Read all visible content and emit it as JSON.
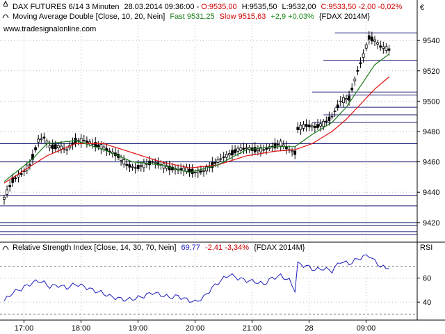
{
  "header": {
    "instrument": "DAX FUTURES 6/14 3 Minuten",
    "datetime": "28.03.2014 09:36:00",
    "ohlc_prefix": " - ",
    "open": "O:9535,00",
    "high": "H:9535,50",
    "low": "L:9532,00",
    "close_change": "C:9533,50 -2,00 -0,02%",
    "ma_label": "Moving Average Double [Close, 10, 20, Nein]",
    "ma_fast": "Fast 9531,25",
    "ma_slow": "Slow 9515,63",
    "ma_change": "+2,9 +0,03%",
    "ma_symbol": "{FDAX 2014M}",
    "website": "www.tradesignalonline.com",
    "currency": "€"
  },
  "rsi_header": {
    "label": "Relative Strength Index [Close, 14, 30, 70, Nein]",
    "value": "69,77",
    "change": "-2,41 -3,34%",
    "symbol": "{FDAX 2014M}",
    "axis_title": "RSI"
  },
  "colors": {
    "candle": "#000000",
    "ma_fast": "#1a7a1a",
    "ma_slow": "#e01010",
    "rsi_line": "#1f1fbf",
    "hline": "#1c1c7a",
    "grid": "#b8b8b8",
    "negative": "#cc0000",
    "positive": "#1a8a1a"
  },
  "chart_data": [
    {
      "type": "candlestick",
      "title": "DAX FUTURES 6/14 3 Minuten",
      "x_ticks": [
        "17:00",
        "18:00",
        "19:00",
        "20:00",
        "21:00",
        "28",
        "09:00"
      ],
      "x_tick_index": [
        5,
        25,
        45,
        65,
        85,
        105,
        125
      ],
      "n_bars": 136,
      "ylim": [
        9408,
        9552
      ],
      "y_ticks": [
        9420,
        9440,
        9460,
        9480,
        9500,
        9520,
        9540
      ],
      "y_tick_labels": [
        "9420",
        "9440",
        "9460",
        "9480",
        "9500",
        "9520",
        "9540"
      ],
      "grid": true,
      "price_anchors": [
        [
          0,
          9436
        ],
        [
          3,
          9448
        ],
        [
          6,
          9452
        ],
        [
          9,
          9458
        ],
        [
          12,
          9474
        ],
        [
          14,
          9476
        ],
        [
          16,
          9470
        ],
        [
          19,
          9470
        ],
        [
          22,
          9468
        ],
        [
          25,
          9474
        ],
        [
          28,
          9474
        ],
        [
          31,
          9472
        ],
        [
          34,
          9470
        ],
        [
          38,
          9466
        ],
        [
          40,
          9464
        ],
        [
          43,
          9458
        ],
        [
          46,
          9456
        ],
        [
          49,
          9458
        ],
        [
          52,
          9460
        ],
        [
          55,
          9458
        ],
        [
          58,
          9456
        ],
        [
          61,
          9455
        ],
        [
          64,
          9455
        ],
        [
          67,
          9453
        ],
        [
          70,
          9454
        ],
        [
          73,
          9458
        ],
        [
          76,
          9462
        ],
        [
          79,
          9465
        ],
        [
          82,
          9468
        ],
        [
          85,
          9469
        ],
        [
          88,
          9468
        ],
        [
          91,
          9468
        ],
        [
          94,
          9470
        ],
        [
          97,
          9472
        ],
        [
          100,
          9468
        ],
        [
          102,
          9466
        ],
        [
          103,
          9482
        ],
        [
          106,
          9484
        ],
        [
          109,
          9483
        ],
        [
          112,
          9485
        ],
        [
          115,
          9490
        ],
        [
          118,
          9500
        ],
        [
          121,
          9502
        ],
        [
          124,
          9520
        ],
        [
          126,
          9530
        ],
        [
          128,
          9542
        ],
        [
          130,
          9540
        ],
        [
          132,
          9536
        ],
        [
          135,
          9534
        ]
      ],
      "fast_ma": [
        [
          0,
          9447
        ],
        [
          10,
          9462
        ],
        [
          15,
          9472
        ],
        [
          25,
          9474
        ],
        [
          35,
          9468
        ],
        [
          45,
          9460
        ],
        [
          55,
          9458
        ],
        [
          65,
          9453
        ],
        [
          75,
          9458
        ],
        [
          85,
          9468
        ],
        [
          95,
          9470
        ],
        [
          102,
          9470
        ],
        [
          108,
          9478
        ],
        [
          115,
          9486
        ],
        [
          120,
          9496
        ],
        [
          125,
          9510
        ],
        [
          130,
          9524
        ],
        [
          135,
          9531
        ]
      ],
      "slow_ma": [
        [
          0,
          9446
        ],
        [
          10,
          9458
        ],
        [
          15,
          9464
        ],
        [
          25,
          9472
        ],
        [
          35,
          9472
        ],
        [
          45,
          9466
        ],
        [
          55,
          9460
        ],
        [
          65,
          9456
        ],
        [
          75,
          9458
        ],
        [
          85,
          9464
        ],
        [
          95,
          9467
        ],
        [
          102,
          9468
        ],
        [
          108,
          9472
        ],
        [
          115,
          9480
        ],
        [
          120,
          9488
        ],
        [
          125,
          9498
        ],
        [
          130,
          9508
        ],
        [
          135,
          9516
        ]
      ],
      "horizontal_levels": [
        9412,
        9414,
        9418,
        9420,
        9431,
        9438,
        9460,
        9472,
        9486,
        9491,
        9496,
        9504,
        9506,
        9527,
        9545
      ],
      "series_names": [
        "Fast 9531,25",
        "Slow 9515,63"
      ]
    },
    {
      "type": "line",
      "title": "Relative Strength Index [Close, 14, 30, 70, Nein]",
      "ylim": [
        25,
        90
      ],
      "y_ticks": [
        40,
        60
      ],
      "y_tick_labels": [
        "40",
        "60"
      ],
      "ref_lines": [
        30,
        70
      ],
      "grid": true,
      "values": [
        [
          0,
          41
        ],
        [
          3,
          48
        ],
        [
          6,
          51
        ],
        [
          9,
          55
        ],
        [
          12,
          58
        ],
        [
          14,
          56
        ],
        [
          16,
          53
        ],
        [
          19,
          54
        ],
        [
          22,
          52
        ],
        [
          25,
          55
        ],
        [
          28,
          53
        ],
        [
          31,
          50
        ],
        [
          34,
          48
        ],
        [
          37,
          45
        ],
        [
          40,
          43
        ],
        [
          43,
          42
        ],
        [
          46,
          43
        ],
        [
          49,
          45
        ],
        [
          52,
          48
        ],
        [
          55,
          46
        ],
        [
          58,
          44
        ],
        [
          61,
          45
        ],
        [
          64,
          42
        ],
        [
          67,
          40
        ],
        [
          70,
          44
        ],
        [
          73,
          52
        ],
        [
          76,
          58
        ],
        [
          79,
          63
        ],
        [
          82,
          60
        ],
        [
          85,
          58
        ],
        [
          88,
          57
        ],
        [
          91,
          55
        ],
        [
          94,
          60
        ],
        [
          97,
          62
        ],
        [
          100,
          58
        ],
        [
          102,
          50
        ],
        [
          103,
          72
        ],
        [
          106,
          70
        ],
        [
          109,
          67
        ],
        [
          112,
          68
        ],
        [
          115,
          66
        ],
        [
          118,
          74
        ],
        [
          121,
          72
        ],
        [
          124,
          76
        ],
        [
          126,
          78
        ],
        [
          128,
          79
        ],
        [
          130,
          74
        ],
        [
          132,
          70
        ],
        [
          134,
          68
        ],
        [
          135,
          69.77
        ]
      ]
    }
  ]
}
